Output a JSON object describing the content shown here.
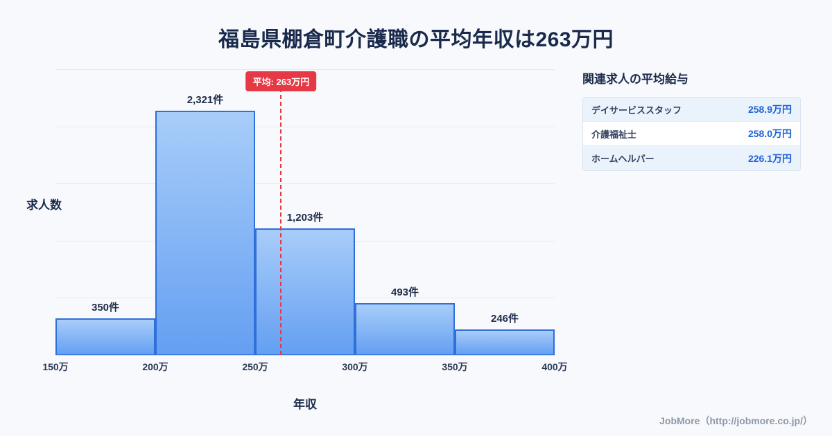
{
  "title": "福島県棚倉町介護職の平均年収は263万円",
  "chart_data": {
    "type": "bar",
    "title": "福島県棚倉町介護職の平均年収は263万円",
    "xlabel": "年収",
    "ylabel": "求人数",
    "x_range_man_yen": [
      150,
      400
    ],
    "bin_width_man_yen": 50,
    "categories": [
      "150万",
      "200万",
      "250万",
      "300万",
      "350万",
      "400万"
    ],
    "values": [
      350,
      2321,
      1203,
      493,
      246
    ],
    "value_labels": [
      "350件",
      "2,321件",
      "1,203件",
      "493件",
      "246件"
    ],
    "bins": [
      {
        "range": "150万-200万",
        "count": 350
      },
      {
        "range": "200万-250万",
        "count": 2321
      },
      {
        "range": "250万-300万",
        "count": 1203
      },
      {
        "range": "300万-350万",
        "count": 493
      },
      {
        "range": "350万-400万",
        "count": 246
      }
    ],
    "average": {
      "value_man_yen": 263,
      "label": "平均: 263万円"
    },
    "grid": true,
    "legend": "none"
  },
  "side_panel": {
    "heading": "関連求人の平均給与",
    "rows": [
      {
        "label": "デイサービススタッフ",
        "value": "258.9万円"
      },
      {
        "label": "介護福祉士",
        "value": "258.0万円"
      },
      {
        "label": "ホームヘルパー",
        "value": "226.1万円"
      }
    ]
  },
  "footer": {
    "credit": "JobMore（http://jobmore.co.jp/）"
  },
  "colors": {
    "background": "#f7f9fc",
    "title_text": "#1a2a4c",
    "bar_fill_top": "#a8cdf9",
    "bar_fill_bottom": "#649ff2",
    "bar_border": "#2f6fd9",
    "average_red": "#e63946",
    "value_blue": "#1d62d9",
    "gridline": "#e3e9f2",
    "footer_text": "#8e98a9"
  }
}
